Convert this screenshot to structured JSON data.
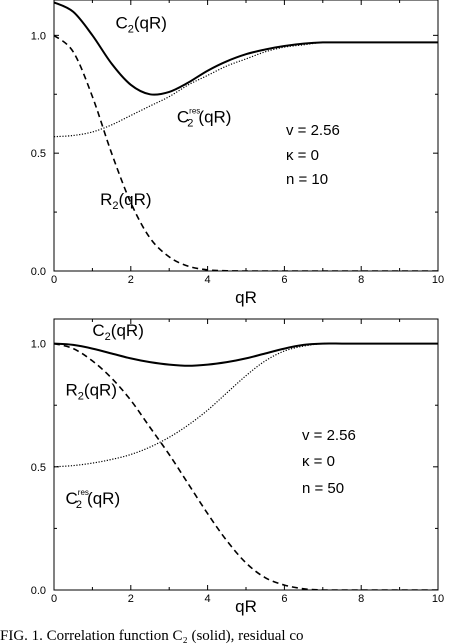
{
  "caption": "FIG. 1. Correlation function C₂ (solid), residual co",
  "chart_data": [
    {
      "type": "line",
      "xlabel": "qR",
      "xlim": [
        0,
        10
      ],
      "ylim": [
        0,
        1.15
      ],
      "xticks": [
        "0",
        "2",
        "4",
        "6",
        "8",
        "10"
      ],
      "yticks": [
        "0.0",
        "0.5",
        "1.0"
      ],
      "params": [
        "v = 2.56",
        "κ =  0",
        "n = 10"
      ],
      "series": [
        {
          "name": "C2(qR)",
          "style": "solid",
          "x": [
            0,
            0.5,
            1,
            1.5,
            2,
            2.5,
            3,
            3.5,
            4,
            4.5,
            5,
            5.5,
            6,
            6.5,
            7,
            7.5,
            8,
            8.5,
            9,
            9.5,
            10
          ],
          "values": [
            1.14,
            1.1,
            1.0,
            0.88,
            0.79,
            0.75,
            0.76,
            0.8,
            0.85,
            0.89,
            0.92,
            0.94,
            0.955,
            0.965,
            0.97,
            0.97,
            0.97,
            0.97,
            0.97,
            0.97,
            0.97
          ]
        },
        {
          "name": "C2res(qR)",
          "style": "dotted",
          "x": [
            0,
            0.5,
            1,
            1.5,
            2,
            2.5,
            3,
            3.5,
            4,
            4.5,
            5,
            5.5,
            6,
            6.5,
            7,
            7.5,
            8,
            8.5,
            9,
            9.5,
            10
          ],
          "values": [
            0.57,
            0.575,
            0.59,
            0.62,
            0.66,
            0.7,
            0.74,
            0.79,
            0.83,
            0.87,
            0.9,
            0.93,
            0.95,
            0.96,
            0.97,
            0.97,
            0.97,
            0.97,
            0.97,
            0.97,
            0.97
          ]
        },
        {
          "name": "R2(qR)",
          "style": "dashed",
          "x": [
            0,
            0.5,
            1,
            1.5,
            2,
            2.5,
            3,
            3.5,
            4,
            4.5,
            5,
            5.5,
            6,
            6.5,
            7,
            7.5,
            8,
            8.5,
            9,
            9.5,
            10
          ],
          "values": [
            1.0,
            0.93,
            0.74,
            0.5,
            0.29,
            0.14,
            0.06,
            0.02,
            0.005,
            0.001,
            0,
            0,
            0,
            0,
            0,
            0,
            0,
            0,
            0,
            0,
            0
          ]
        }
      ],
      "labels": [
        {
          "text": "C",
          "sub": "2",
          "sup": "",
          "tail": "(qR)",
          "x": 1.6,
          "y": 1.03
        },
        {
          "text": "C",
          "sub": "2",
          "sup": "res",
          "tail": "(qR)",
          "x": 3.2,
          "y": 0.63
        },
        {
          "text": "R",
          "sub": "2",
          "sup": "",
          "tail": "(qR)",
          "x": 1.2,
          "y": 0.28
        }
      ]
    },
    {
      "type": "line",
      "xlabel": "qR",
      "xlim": [
        0,
        10
      ],
      "ylim": [
        0,
        1.1
      ],
      "xticks": [
        "0",
        "2",
        "4",
        "6",
        "8",
        "10"
      ],
      "yticks": [
        "0.0",
        "0.5",
        "1.0"
      ],
      "params": [
        "v = 2.56",
        "κ =  0",
        "n = 50"
      ],
      "series": [
        {
          "name": "C2(qR)",
          "style": "solid",
          "x": [
            0,
            0.5,
            1,
            1.5,
            2,
            2.5,
            3,
            3.5,
            4,
            4.5,
            5,
            5.5,
            6,
            6.5,
            7,
            7.5,
            8,
            8.5,
            9,
            9.5,
            10
          ],
          "values": [
            1.0,
            0.995,
            0.98,
            0.96,
            0.94,
            0.925,
            0.915,
            0.91,
            0.915,
            0.925,
            0.94,
            0.96,
            0.98,
            0.995,
            1.0,
            1.0,
            1.0,
            1.0,
            1.0,
            1.0,
            1.0
          ]
        },
        {
          "name": "C2res(qR)",
          "style": "dotted",
          "x": [
            0,
            0.5,
            1,
            1.5,
            2,
            2.5,
            3,
            3.5,
            4,
            4.5,
            5,
            5.5,
            6,
            6.5,
            7,
            7.5,
            8,
            8.5,
            9,
            9.5,
            10
          ],
          "values": [
            0.5,
            0.505,
            0.515,
            0.53,
            0.55,
            0.58,
            0.62,
            0.67,
            0.73,
            0.8,
            0.87,
            0.93,
            0.97,
            0.99,
            1.0,
            1.0,
            1.0,
            1.0,
            1.0,
            1.0,
            1.0
          ]
        },
        {
          "name": "R2(qR)",
          "style": "dashed",
          "x": [
            0,
            0.5,
            1,
            1.5,
            2,
            2.5,
            3,
            3.5,
            4,
            4.5,
            5,
            5.5,
            6,
            6.5,
            7,
            7.5,
            8,
            8.5,
            9,
            9.5,
            10
          ],
          "values": [
            1.0,
            0.98,
            0.93,
            0.86,
            0.77,
            0.66,
            0.55,
            0.43,
            0.31,
            0.2,
            0.11,
            0.05,
            0.02,
            0.005,
            0,
            0,
            0,
            0,
            0,
            0,
            0
          ]
        }
      ],
      "labels": [
        {
          "text": "C",
          "sub": "2",
          "sup": "",
          "tail": "(qR)",
          "x": 1.0,
          "y": 1.03
        },
        {
          "text": "R",
          "sub": "2",
          "sup": "",
          "tail": "(qR)",
          "x": 0.3,
          "y": 0.79
        },
        {
          "text": "C",
          "sub": "2",
          "sup": "res",
          "tail": "(qR)",
          "x": 0.3,
          "y": 0.35
        }
      ]
    }
  ]
}
